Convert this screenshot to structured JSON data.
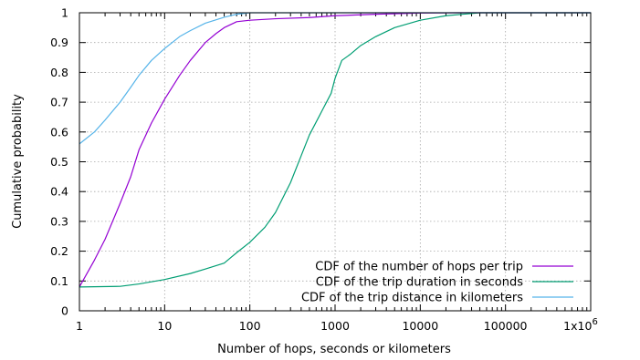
{
  "chart_data": {
    "type": "line",
    "xlabel": "Number of hops, seconds or kilometers",
    "ylabel": "Cumulative probability",
    "x_scale": "log",
    "xlim": [
      1,
      1000000
    ],
    "ylim": [
      0,
      1
    ],
    "grid": true,
    "legend_position": "bottom-right",
    "x_ticks": [
      {
        "value": 1,
        "label": "1"
      },
      {
        "value": 10,
        "label": "10"
      },
      {
        "value": 100,
        "label": "100"
      },
      {
        "value": 1000,
        "label": "1000"
      },
      {
        "value": 10000,
        "label": "10000"
      },
      {
        "value": 100000,
        "label": "100000"
      },
      {
        "value": 1000000,
        "label": "1x10",
        "sup": "6"
      }
    ],
    "y_ticks": [
      {
        "value": 0,
        "label": "0"
      },
      {
        "value": 0.1,
        "label": "0.1"
      },
      {
        "value": 0.2,
        "label": "0.2"
      },
      {
        "value": 0.3,
        "label": "0.3"
      },
      {
        "value": 0.4,
        "label": "0.4"
      },
      {
        "value": 0.5,
        "label": "0.5"
      },
      {
        "value": 0.6,
        "label": "0.6"
      },
      {
        "value": 0.7,
        "label": "0.7"
      },
      {
        "value": 0.8,
        "label": "0.8"
      },
      {
        "value": 0.9,
        "label": "0.9"
      },
      {
        "value": 1,
        "label": "1"
      }
    ],
    "series": [
      {
        "name": "CDF of the number of hops per trip",
        "color": "#9400d3",
        "points": [
          [
            1,
            0.08
          ],
          [
            1.5,
            0.17
          ],
          [
            2,
            0.24
          ],
          [
            3,
            0.36
          ],
          [
            4,
            0.45
          ],
          [
            5,
            0.54
          ],
          [
            7,
            0.63
          ],
          [
            10,
            0.71
          ],
          [
            15,
            0.79
          ],
          [
            20,
            0.84
          ],
          [
            30,
            0.9
          ],
          [
            40,
            0.93
          ],
          [
            50,
            0.95
          ],
          [
            70,
            0.97
          ],
          [
            100,
            0.975
          ],
          [
            200,
            0.98
          ],
          [
            500,
            0.984
          ],
          [
            1000,
            0.99
          ],
          [
            3000,
            0.995
          ],
          [
            10000,
            0.999
          ],
          [
            30000,
            1
          ],
          [
            1000000,
            1
          ]
        ]
      },
      {
        "name": "CDF of the trip duration in seconds",
        "color": "#009e73",
        "points": [
          [
            1,
            0.08
          ],
          [
            3,
            0.082
          ],
          [
            5,
            0.09
          ],
          [
            10,
            0.105
          ],
          [
            20,
            0.125
          ],
          [
            30,
            0.14
          ],
          [
            50,
            0.16
          ],
          [
            70,
            0.195
          ],
          [
            100,
            0.23
          ],
          [
            150,
            0.28
          ],
          [
            200,
            0.33
          ],
          [
            300,
            0.43
          ],
          [
            400,
            0.52
          ],
          [
            500,
            0.59
          ],
          [
            700,
            0.67
          ],
          [
            900,
            0.73
          ],
          [
            1000,
            0.78
          ],
          [
            1200,
            0.84
          ],
          [
            1500,
            0.86
          ],
          [
            2000,
            0.89
          ],
          [
            3000,
            0.92
          ],
          [
            5000,
            0.95
          ],
          [
            10000,
            0.975
          ],
          [
            20000,
            0.99
          ],
          [
            50000,
            1
          ],
          [
            1000000,
            1
          ]
        ]
      },
      {
        "name": "CDF of the trip distance in kilometers",
        "color": "#56b4e9",
        "points": [
          [
            1,
            0.56
          ],
          [
            1.5,
            0.6
          ],
          [
            2,
            0.64
          ],
          [
            3,
            0.7
          ],
          [
            4,
            0.75
          ],
          [
            5,
            0.79
          ],
          [
            7,
            0.84
          ],
          [
            10,
            0.88
          ],
          [
            15,
            0.92
          ],
          [
            20,
            0.94
          ],
          [
            30,
            0.965
          ],
          [
            50,
            0.985
          ],
          [
            70,
            0.995
          ],
          [
            100,
            1
          ],
          [
            1000000,
            1
          ]
        ]
      }
    ]
  }
}
